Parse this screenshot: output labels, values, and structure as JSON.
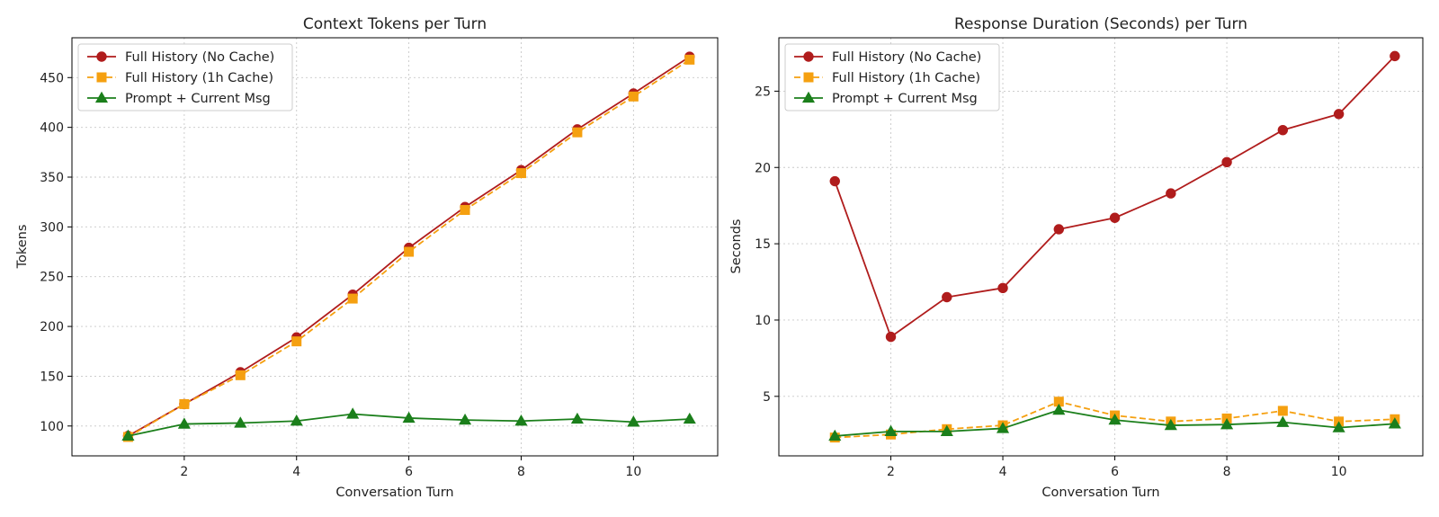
{
  "colors": {
    "no_cache": "#b01c1c",
    "cache_1h": "#f5a010",
    "prompt_current": "#1b7f1b"
  },
  "legend": {
    "no_cache": "Full History (No Cache)",
    "cache_1h": "Full History (1h Cache)",
    "prompt_current": "Prompt + Current Msg"
  },
  "chart_data": [
    {
      "type": "line",
      "title": "Context Tokens per Turn",
      "xlabel": "Conversation Turn",
      "ylabel": "Tokens",
      "x": [
        1,
        2,
        3,
        4,
        5,
        6,
        7,
        8,
        9,
        10,
        11
      ],
      "xlim": [
        0.0,
        11.5
      ],
      "ylim": [
        70,
        490
      ],
      "xticks": [
        2,
        4,
        6,
        8,
        10
      ],
      "yticks": [
        100,
        150,
        200,
        250,
        300,
        350,
        400,
        450
      ],
      "grid": true,
      "legend_position": "top-left",
      "series": [
        {
          "name": "Full History (No Cache)",
          "marker": "circle",
          "linestyle": "solid",
          "values": [
            90,
            122,
            154,
            189,
            232,
            279,
            320,
            357,
            398,
            434,
            471
          ]
        },
        {
          "name": "Full History (1h Cache)",
          "marker": "square",
          "linestyle": "dashed",
          "values": [
            89,
            122,
            151,
            185,
            228,
            275,
            317,
            354,
            395,
            431,
            468
          ]
        },
        {
          "name": "Prompt + Current Msg",
          "marker": "triangle",
          "linestyle": "solid",
          "values": [
            90,
            102,
            103,
            105,
            112,
            108,
            106,
            105,
            107,
            104,
            107
          ]
        }
      ]
    },
    {
      "type": "line",
      "title": "Response Duration (Seconds) per Turn",
      "xlabel": "Conversation Turn",
      "ylabel": "Seconds",
      "x": [
        1,
        2,
        3,
        4,
        5,
        6,
        7,
        8,
        9,
        10,
        11
      ],
      "xlim": [
        0.0,
        11.5
      ],
      "ylim": [
        1.1,
        28.5
      ],
      "xticks": [
        2,
        4,
        6,
        8,
        10
      ],
      "yticks": [
        5,
        10,
        15,
        20,
        25
      ],
      "grid": true,
      "legend_position": "top-left",
      "series": [
        {
          "name": "Full History (No Cache)",
          "marker": "circle",
          "linestyle": "solid",
          "values": [
            19.1,
            8.9,
            11.5,
            12.1,
            15.95,
            16.7,
            18.3,
            20.35,
            22.45,
            23.5,
            27.3
          ]
        },
        {
          "name": "Full History (1h Cache)",
          "marker": "square",
          "linestyle": "dashed",
          "values": [
            2.3,
            2.5,
            2.85,
            3.1,
            4.65,
            3.75,
            3.35,
            3.55,
            4.05,
            3.35,
            3.5
          ]
        },
        {
          "name": "Prompt + Current Msg",
          "marker": "triangle",
          "linestyle": "solid",
          "values": [
            2.4,
            2.7,
            2.7,
            2.9,
            4.1,
            3.45,
            3.1,
            3.15,
            3.3,
            2.95,
            3.2
          ]
        }
      ]
    }
  ]
}
